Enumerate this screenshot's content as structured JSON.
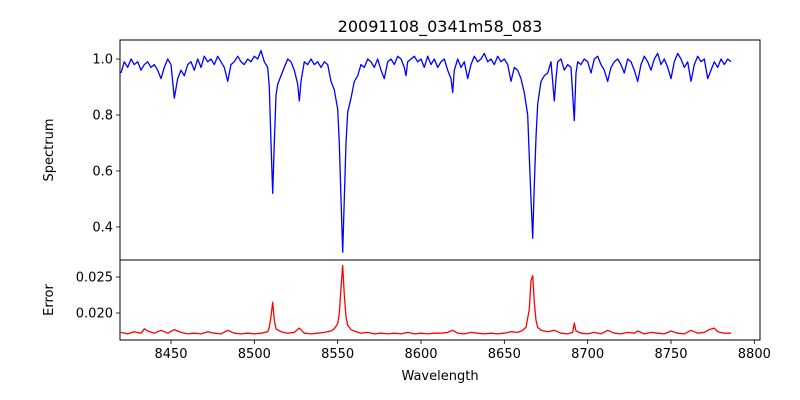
{
  "chart_data": [
    {
      "type": "line",
      "title": "20091108_0341m58_083",
      "xlabel": "",
      "ylabel": "Spectrum",
      "xlim": [
        8419.4,
        8803.4
      ],
      "ylim": [
        0.282,
        1.068
      ],
      "yticks": [
        0.4,
        0.6,
        0.8,
        1.0
      ],
      "ytick_labels": [
        "0.4",
        "0.6",
        "0.8",
        "1.0"
      ],
      "grid": false,
      "color": "#0000ff",
      "x": [
        8420,
        8422,
        8424,
        8426,
        8428,
        8430,
        8432,
        8434,
        8436,
        8438,
        8440,
        8442,
        8444,
        8446,
        8448,
        8450,
        8452,
        8454,
        8456,
        8458,
        8460,
        8462,
        8464,
        8466,
        8468,
        8470,
        8472,
        8474,
        8476,
        8478,
        8480,
        8482,
        8484,
        8486,
        8488,
        8490,
        8492,
        8494,
        8496,
        8498,
        8500,
        8502,
        8504,
        8506,
        8508,
        8509,
        8510,
        8511,
        8512,
        8513,
        8514,
        8516,
        8518,
        8520,
        8522,
        8524,
        8526,
        8527,
        8528,
        8530,
        8532,
        8534,
        8536,
        8538,
        8540,
        8542,
        8544,
        8546,
        8548,
        8550,
        8551,
        8552,
        8553,
        8554,
        8555,
        8556,
        8558,
        8560,
        8562,
        8564,
        8566,
        8568,
        8570,
        8572,
        8574,
        8576,
        8578,
        8580,
        8582,
        8584,
        8586,
        8588,
        8590,
        8591,
        8592,
        8594,
        8596,
        8598,
        8600,
        8602,
        8604,
        8606,
        8608,
        8610,
        8612,
        8614,
        8616,
        8618,
        8619,
        8620,
        8622,
        8624,
        8626,
        8628,
        8630,
        8632,
        8634,
        8636,
        8638,
        8640,
        8642,
        8644,
        8646,
        8648,
        8650,
        8652,
        8654,
        8656,
        8658,
        8660,
        8662,
        8664,
        8665,
        8666,
        8667,
        8668,
        8669,
        8670,
        8672,
        8674,
        8676,
        8678,
        8680,
        8681,
        8682,
        8684,
        8686,
        8688,
        8690,
        8692,
        8693,
        8694,
        8696,
        8698,
        8700,
        8702,
        8704,
        8706,
        8708,
        8710,
        8712,
        8714,
        8716,
        8718,
        8720,
        8722,
        8724,
        8726,
        8728,
        8730,
        8732,
        8734,
        8736,
        8738,
        8740,
        8742,
        8744,
        8746,
        8748,
        8750,
        8752,
        8754,
        8756,
        8758,
        8760,
        8762,
        8764,
        8766,
        8768,
        8770,
        8772,
        8774,
        8776,
        8778,
        8780,
        8782,
        8784,
        8786
      ],
      "y": [
        0.95,
        0.99,
        0.97,
        1.0,
        0.98,
        0.99,
        0.96,
        0.98,
        0.99,
        0.97,
        0.98,
        0.96,
        0.93,
        0.97,
        1.0,
        0.98,
        0.86,
        0.93,
        0.96,
        0.94,
        0.98,
        0.99,
        0.96,
        1.0,
        0.97,
        1.01,
        0.99,
        1.0,
        0.98,
        1.01,
        0.99,
        0.97,
        0.92,
        0.98,
        0.99,
        1.01,
        0.99,
        0.98,
        1.0,
        0.99,
        1.01,
        1.0,
        1.03,
        0.99,
        0.97,
        0.9,
        0.7,
        0.52,
        0.7,
        0.87,
        0.91,
        0.94,
        0.97,
        1.0,
        0.99,
        0.96,
        0.91,
        0.85,
        0.92,
        0.99,
        0.98,
        1.0,
        0.98,
        0.99,
        0.97,
        0.99,
        0.98,
        0.92,
        0.89,
        0.82,
        0.7,
        0.5,
        0.31,
        0.5,
        0.7,
        0.81,
        0.86,
        0.92,
        0.94,
        0.98,
        0.97,
        1.0,
        0.99,
        0.97,
        1.0,
        0.96,
        0.93,
        0.99,
        1.0,
        0.98,
        1.01,
        1.0,
        0.97,
        0.94,
        0.99,
        1.0,
        1.01,
        0.99,
        1.0,
        0.97,
        1.01,
        0.98,
        1.0,
        0.97,
        0.99,
        1.0,
        0.96,
        0.93,
        0.88,
        0.96,
        1.0,
        0.97,
        0.99,
        0.93,
        0.98,
        1.01,
        0.99,
        1.0,
        1.02,
        0.99,
        1.0,
        0.98,
        1.01,
        0.99,
        1.0,
        0.98,
        0.92,
        0.97,
        0.96,
        0.93,
        0.88,
        0.8,
        0.65,
        0.5,
        0.36,
        0.55,
        0.72,
        0.84,
        0.92,
        0.94,
        0.95,
        0.99,
        0.85,
        0.93,
        0.99,
        1.0,
        0.96,
        0.98,
        0.97,
        0.78,
        0.95,
        0.99,
        0.98,
        1.0,
        0.99,
        0.95,
        1.0,
        1.01,
        0.98,
        0.96,
        0.92,
        0.97,
        0.99,
        1.0,
        0.98,
        0.95,
        1.0,
        0.99,
        0.96,
        0.92,
        0.98,
        1.01,
        0.99,
        0.96,
        1.0,
        1.02,
        0.98,
        1.0,
        0.97,
        0.93,
        0.99,
        1.02,
        1.0,
        0.97,
        0.99,
        0.92,
        0.98,
        1.01,
        0.99,
        1.0,
        0.93,
        0.96,
        0.99,
        0.97,
        1.0,
        0.98,
        1.0,
        0.99
      ]
    },
    {
      "type": "line",
      "title": "",
      "xlabel": "Wavelength",
      "ylabel": "Error",
      "xlim": [
        8419.4,
        8803.4
      ],
      "ylim": [
        0.01625,
        0.02736
      ],
      "xticks": [
        8450,
        8500,
        8550,
        8600,
        8650,
        8700,
        8750,
        8800
      ],
      "xtick_labels": [
        "8450",
        "8500",
        "8550",
        "8600",
        "8650",
        "8700",
        "8750",
        "8800"
      ],
      "yticks": [
        0.02,
        0.025
      ],
      "ytick_labels": [
        "0.020",
        "0.025"
      ],
      "grid": false,
      "color": "#ff0000",
      "x": [
        8420,
        8424,
        8428,
        8432,
        8434,
        8436,
        8440,
        8444,
        8448,
        8452,
        8456,
        8460,
        8464,
        8468,
        8472,
        8476,
        8480,
        8484,
        8488,
        8492,
        8496,
        8500,
        8504,
        8508,
        8509,
        8510,
        8511,
        8512,
        8513,
        8516,
        8520,
        8524,
        8527,
        8530,
        8534,
        8538,
        8542,
        8546,
        8548,
        8550,
        8551,
        8552,
        8553,
        8554,
        8555,
        8556,
        8558,
        8561,
        8564,
        8568,
        8572,
        8576,
        8580,
        8584,
        8588,
        8592,
        8596,
        8600,
        8604,
        8608,
        8612,
        8616,
        8619,
        8622,
        8626,
        8630,
        8634,
        8638,
        8642,
        8646,
        8650,
        8654,
        8658,
        8661,
        8663,
        8665,
        8666,
        8667,
        8668,
        8669,
        8670,
        8672,
        8676,
        8680,
        8684,
        8688,
        8691,
        8692,
        8693,
        8696,
        8700,
        8704,
        8708,
        8712,
        8716,
        8720,
        8724,
        8728,
        8730,
        8734,
        8738,
        8742,
        8746,
        8750,
        8754,
        8758,
        8762,
        8766,
        8770,
        8773,
        8776,
        8778,
        8782,
        8786
      ],
      "y": [
        0.0173,
        0.0171,
        0.0174,
        0.0172,
        0.0178,
        0.0175,
        0.0172,
        0.0176,
        0.0172,
        0.0177,
        0.0173,
        0.0171,
        0.0172,
        0.0171,
        0.0174,
        0.0172,
        0.0171,
        0.0176,
        0.0172,
        0.0171,
        0.0172,
        0.0171,
        0.0172,
        0.0174,
        0.018,
        0.0195,
        0.0215,
        0.019,
        0.0178,
        0.0174,
        0.0172,
        0.0173,
        0.0179,
        0.0172,
        0.0171,
        0.0172,
        0.0173,
        0.0175,
        0.0178,
        0.0185,
        0.02,
        0.0235,
        0.0266,
        0.0225,
        0.0195,
        0.0183,
        0.0177,
        0.0174,
        0.0172,
        0.0173,
        0.0171,
        0.0172,
        0.0171,
        0.0172,
        0.0171,
        0.0173,
        0.0171,
        0.0172,
        0.0171,
        0.0172,
        0.0172,
        0.0173,
        0.0176,
        0.0172,
        0.0171,
        0.0173,
        0.0172,
        0.0171,
        0.0172,
        0.0171,
        0.0172,
        0.0174,
        0.0173,
        0.0176,
        0.018,
        0.0205,
        0.0245,
        0.0252,
        0.0215,
        0.019,
        0.018,
        0.0176,
        0.0174,
        0.0176,
        0.0172,
        0.0171,
        0.0173,
        0.0186,
        0.0175,
        0.0172,
        0.0171,
        0.0173,
        0.0171,
        0.0176,
        0.0172,
        0.0171,
        0.0173,
        0.0172,
        0.0175,
        0.0171,
        0.0173,
        0.0172,
        0.0171,
        0.0175,
        0.0172,
        0.0171,
        0.0176,
        0.0172,
        0.0173,
        0.0177,
        0.0179,
        0.0174,
        0.0172,
        0.0172
      ]
    }
  ]
}
